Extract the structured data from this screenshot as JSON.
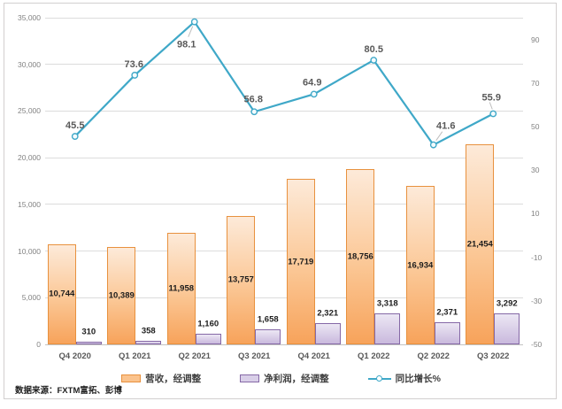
{
  "source_note": "数据来源：FXTM富拓、彭博",
  "chart_data": {
    "type": "bar",
    "subtype": "combo-bar-line",
    "categories": [
      "Q4 2020",
      "Q1 2021",
      "Q2 2021",
      "Q3 2021",
      "Q4 2021",
      "Q1 2022",
      "Q2 2022",
      "Q3 2022"
    ],
    "series": [
      {
        "name": "营收，经调整",
        "type": "bar",
        "color": "#f79646",
        "values": [
          10744,
          10389,
          11958,
          13757,
          17719,
          18756,
          16934,
          21454
        ]
      },
      {
        "name": "净利润，经调整",
        "type": "bar",
        "color": "#8064a2",
        "values": [
          310,
          358,
          1160,
          1658,
          2321,
          3318,
          2371,
          3292
        ]
      },
      {
        "name": "同比增长%",
        "type": "line",
        "color": "#3fa8c8",
        "values": [
          45.5,
          73.6,
          98.1,
          56.8,
          64.9,
          80.5,
          41.6,
          55.9
        ]
      }
    ],
    "left_axis": {
      "min": 0,
      "max": 35000,
      "step": 5000,
      "ticks": [
        0,
        5000,
        10000,
        15000,
        20000,
        25000,
        30000,
        35000
      ]
    },
    "right_axis": {
      "min": -50,
      "max": 100,
      "step": 20,
      "ticks": [
        -50,
        -30,
        -10,
        10,
        30,
        50,
        70,
        90
      ]
    },
    "grid": true,
    "legend_position": "bottom",
    "title": "",
    "xlabel": "",
    "ylabel": ""
  }
}
